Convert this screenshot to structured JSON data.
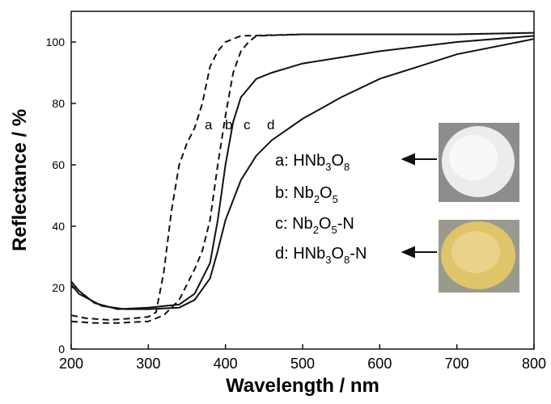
{
  "chart_data": {
    "type": "line",
    "xlabel": "Wavelength / nm",
    "ylabel": "Reflectance / %",
    "xlim": [
      200,
      800
    ],
    "xticks": [
      200,
      300,
      400,
      500,
      600,
      700,
      800
    ],
    "ylim": [
      0,
      110
    ],
    "yticks": [
      0,
      20,
      40,
      60,
      80,
      100
    ],
    "series": [
      {
        "name": "a: HNb3O8",
        "tag": "a",
        "color": "#111111",
        "dashed": true,
        "x": [
          200,
          220,
          250,
          280,
          300,
          310,
          320,
          330,
          340,
          350,
          360,
          370,
          380,
          390,
          400,
          420,
          500,
          600,
          700,
          800
        ],
        "values": [
          11,
          10,
          9.5,
          10,
          10.5,
          12,
          25,
          45,
          60,
          67,
          72,
          80,
          92,
          97,
          100,
          102,
          102.5,
          102.5,
          102.5,
          103
        ]
      },
      {
        "name": "b: Nb2O5",
        "tag": "b",
        "color": "#111111",
        "dashed": true,
        "x": [
          200,
          230,
          260,
          300,
          320,
          340,
          360,
          370,
          380,
          390,
          400,
          410,
          420,
          430,
          440,
          500,
          600,
          700,
          800
        ],
        "values": [
          9,
          8.5,
          8.5,
          9,
          11,
          16,
          26,
          32,
          42,
          60,
          76,
          90,
          97,
          100,
          102,
          102.5,
          102.5,
          102.5,
          103
        ]
      },
      {
        "name": "c: Nb2O5-N",
        "tag": "c",
        "color": "#111111",
        "dashed": false,
        "x": [
          200,
          210,
          230,
          260,
          300,
          340,
          360,
          380,
          390,
          400,
          410,
          420,
          440,
          460,
          500,
          550,
          600,
          700,
          800
        ],
        "values": [
          22,
          19,
          15,
          13,
          13.5,
          14.5,
          18,
          28,
          42,
          60,
          74,
          82,
          88,
          90,
          93,
          95,
          97,
          100,
          102
        ]
      },
      {
        "name": "d: HNb3O8-N",
        "tag": "d",
        "color": "#111111",
        "dashed": false,
        "x": [
          200,
          210,
          240,
          270,
          300,
          340,
          360,
          380,
          390,
          400,
          420,
          440,
          460,
          500,
          550,
          600,
          650,
          700,
          800
        ],
        "values": [
          21,
          18,
          14,
          13,
          13,
          13.5,
          16,
          23,
          32,
          42,
          55,
          63,
          68,
          75,
          82,
          88,
          92,
          96,
          101
        ]
      }
    ]
  }
}
